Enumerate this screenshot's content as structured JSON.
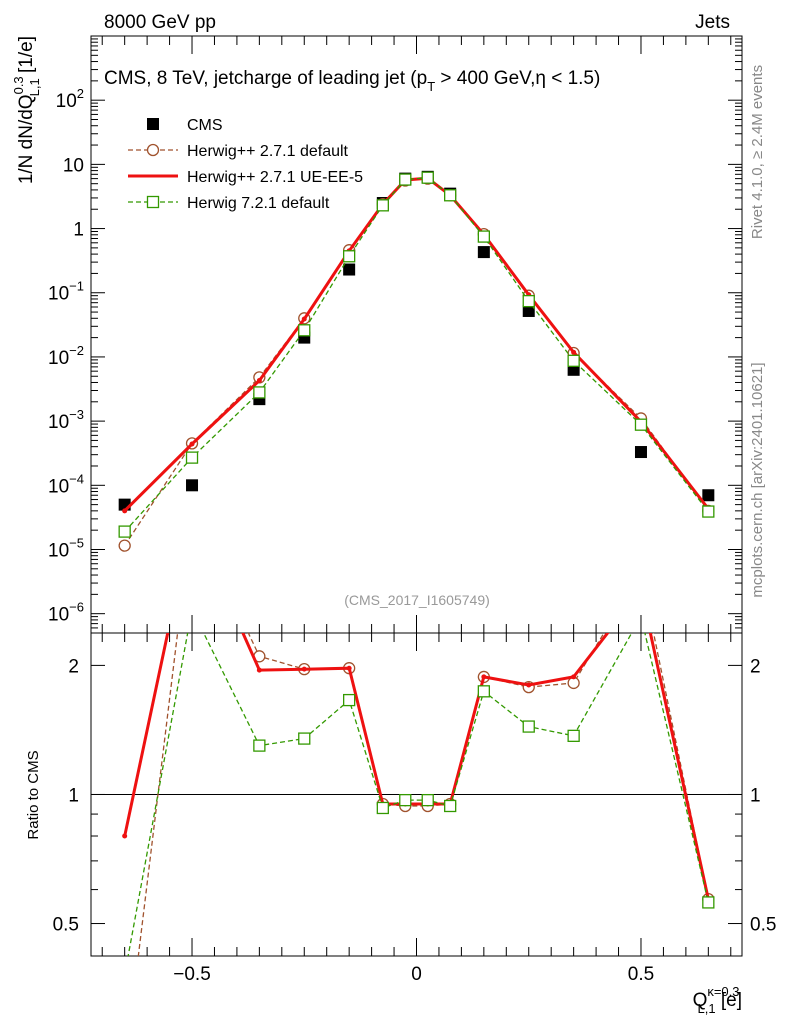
{
  "header": {
    "left": "8000 GeV pp",
    "right": "Jets"
  },
  "side_labels": {
    "rivet": "Rivet 4.1.0, ≥ 2.4M events",
    "mcplots": "mcplots.cern.ch [arXiv:2401.10621]"
  },
  "chart_data": [
    {
      "panel": "main",
      "type": "line",
      "title": "CMS, 8 TeV, jetcharge of leading jet (p_T > 400 GeV, η < 1.5)",
      "title_parts": {
        "pre": "CMS, 8 TeV, jetcharge of leading jet (p",
        "sub": "T",
        "post": " > 400 GeV,η < 1.5)"
      },
      "watermark": "(CMS_2017_I1605749)",
      "ylabel": "1/N dN/dQ^{0.3}_{L,1} [1/e]",
      "ylabel_parts": {
        "pre": "1/N dN/dQ",
        "sup": "0.3",
        "sub": "L,1",
        "post": " [1/e]"
      },
      "yscale": "log",
      "ylim": [
        5e-07,
        1000
      ],
      "xlim": [
        -0.725,
        0.725
      ],
      "yticks": [
        {
          "v": 1e-06,
          "label": "10^{-6}",
          "base": "10",
          "exp": "−6"
        },
        {
          "v": 1e-05,
          "label": "10^{-5}",
          "base": "10",
          "exp": "−5"
        },
        {
          "v": 0.0001,
          "label": "10^{-4}",
          "base": "10",
          "exp": "−4"
        },
        {
          "v": 0.001,
          "label": "10^{-3}",
          "base": "10",
          "exp": "−3"
        },
        {
          "v": 0.01,
          "label": "10^{-2}",
          "base": "10",
          "exp": "−2"
        },
        {
          "v": 0.1,
          "label": "10^{-1}",
          "base": "10",
          "exp": "−1"
        },
        {
          "v": 1,
          "label": "1",
          "base": "1",
          "exp": ""
        },
        {
          "v": 10,
          "label": "10",
          "base": "10",
          "exp": ""
        },
        {
          "v": 100,
          "label": "10^{2}",
          "base": "10",
          "exp": "2"
        }
      ],
      "x": [
        -0.65,
        -0.5,
        -0.35,
        -0.25,
        -0.15,
        -0.075,
        -0.025,
        0.025,
        0.075,
        0.15,
        0.25,
        0.35,
        0.5,
        0.65
      ],
      "series": [
        {
          "name": "CMS",
          "style": "data",
          "color": "#000000",
          "values": [
            5e-05,
            0.0001,
            0.0022,
            0.02,
            0.23,
            2.5,
            6.0,
            6.4,
            3.5,
            0.43,
            0.052,
            0.0063,
            0.00033,
            7e-05
          ]
        },
        {
          "name": "Herwig++ 2.7.1 default",
          "style": "dashed-circle",
          "color": "#a0522d",
          "values": [
            1.15e-05,
            0.00045,
            0.0048,
            0.04,
            0.46,
            2.4,
            5.6,
            6.0,
            3.3,
            0.82,
            0.09,
            0.0115,
            0.0011,
            4e-05
          ]
        },
        {
          "name": "Herwig++ 2.7.1 UE-EE-5",
          "style": "solid",
          "color": "#ee1111",
          "values": [
            4e-05,
            0.00044,
            0.0043,
            0.039,
            0.45,
            2.4,
            5.7,
            6.1,
            3.3,
            0.81,
            0.093,
            0.0118,
            0.00098,
            4.3e-05
          ]
        },
        {
          "name": "Herwig 7.2.1 default",
          "style": "dashed-square",
          "color": "#339900",
          "values": [
            1.9e-05,
            0.00027,
            0.0028,
            0.026,
            0.37,
            2.3,
            5.8,
            6.2,
            3.3,
            0.75,
            0.074,
            0.0087,
            0.00088,
            3.9e-05
          ]
        }
      ]
    },
    {
      "panel": "ratio",
      "type": "line",
      "ylabel": "Ratio to CMS",
      "xlabel": "Q^{κ=0.3}_{L,1} [e]",
      "xlabel_parts": {
        "pre": "Q",
        "sup": "κ=0.3",
        "sub": "L,1",
        "post": " [e]"
      },
      "yscale": "log",
      "ylim": [
        0.42,
        2.38
      ],
      "xlim": [
        -0.725,
        0.725
      ],
      "yticks": [
        0.5,
        1,
        2
      ],
      "ytick_labels": [
        "0.5",
        "1",
        "2"
      ],
      "xticks": [
        -0.5,
        0,
        0.5
      ],
      "xtick_labels": [
        "−0.5",
        "0",
        "0.5"
      ],
      "reference_line": 1,
      "x": [
        -0.65,
        -0.5,
        -0.35,
        -0.25,
        -0.15,
        -0.075,
        -0.025,
        0.025,
        0.075,
        0.15,
        0.25,
        0.35,
        0.5,
        0.65
      ],
      "series": [
        {
          "name": "Herwig++ 2.7.1 default",
          "style": "dashed-circle",
          "color": "#a0522d",
          "values": [
            0.23,
            4.5,
            2.1,
            1.96,
            1.97,
            0.95,
            0.94,
            0.94,
            0.95,
            1.88,
            1.78,
            1.82,
            3.3,
            0.57
          ]
        },
        {
          "name": "Herwig++ 2.7.1 UE-EE-5",
          "style": "solid",
          "color": "#ee1111",
          "values": [
            0.8,
            4.4,
            1.95,
            1.96,
            1.97,
            0.95,
            0.95,
            0.95,
            0.95,
            1.88,
            1.8,
            1.88,
            3.0,
            0.57
          ]
        },
        {
          "name": "Herwig 7.2.1 default",
          "style": "dashed-square",
          "color": "#339900",
          "values": [
            0.38,
            2.7,
            1.3,
            1.35,
            1.66,
            0.93,
            0.97,
            0.97,
            0.94,
            1.74,
            1.44,
            1.37,
            2.6,
            0.56
          ]
        }
      ]
    }
  ]
}
